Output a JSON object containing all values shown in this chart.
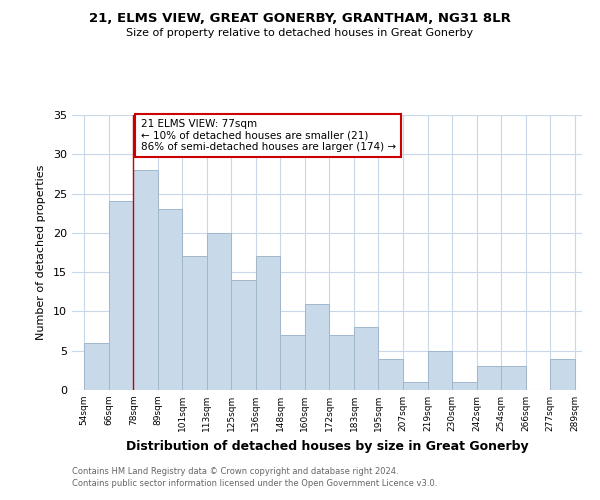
{
  "title1": "21, ELMS VIEW, GREAT GONERBY, GRANTHAM, NG31 8LR",
  "title2": "Size of property relative to detached houses in Great Gonerby",
  "xlabel": "Distribution of detached houses by size in Great Gonerby",
  "ylabel": "Number of detached properties",
  "bin_labels": [
    "54sqm",
    "66sqm",
    "78sqm",
    "89sqm",
    "101sqm",
    "113sqm",
    "125sqm",
    "136sqm",
    "148sqm",
    "160sqm",
    "172sqm",
    "183sqm",
    "195sqm",
    "207sqm",
    "219sqm",
    "230sqm",
    "242sqm",
    "254sqm",
    "266sqm",
    "277sqm",
    "289sqm"
  ],
  "bar_heights": [
    6,
    24,
    28,
    23,
    17,
    20,
    14,
    17,
    7,
    11,
    7,
    8,
    4,
    1,
    5,
    1,
    3,
    3,
    0,
    4
  ],
  "bar_color": "#c8d9ea",
  "bar_edge_color": "#a0b8cc",
  "red_line_index": 2,
  "annotation_line1": "21 ELMS VIEW: 77sqm",
  "annotation_line2": "← 10% of detached houses are smaller (21)",
  "annotation_line3": "86% of semi-detached houses are larger (174) →",
  "annotation_box_color": "#ffffff",
  "annotation_box_edge_color": "#cc0000",
  "ylim": [
    0,
    35
  ],
  "yticks": [
    0,
    5,
    10,
    15,
    20,
    25,
    30,
    35
  ],
  "footer1": "Contains HM Land Registry data © Crown copyright and database right 2024.",
  "footer2": "Contains public sector information licensed under the Open Government Licence v3.0.",
  "bg_color": "#ffffff",
  "plot_bg_color": "#ffffff",
  "grid_color": "#c8d8e8"
}
